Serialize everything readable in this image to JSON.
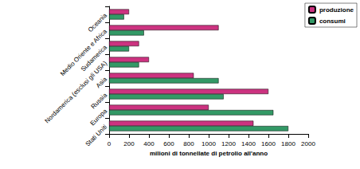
{
  "chart_data": {
    "type": "bar",
    "orientation": "horizontal",
    "x_label": "milioni di tonnellate di petrolio all'anno",
    "categories": [
      "Stati Uniti",
      "Europa",
      "Russia",
      "Asia",
      "Nordamerica (esclusi gli USA)",
      "Sudamerica",
      "Medio Oriente e Africa",
      "Oceania"
    ],
    "series": [
      {
        "name": "produzione",
        "color": "#cc3380",
        "values": [
          1450,
          1000,
          1600,
          850,
          400,
          300,
          1100,
          200
        ]
      },
      {
        "name": "consumi",
        "color": "#339966",
        "values": [
          1800,
          1650,
          1150,
          1100,
          300,
          200,
          350,
          150
        ]
      }
    ],
    "xlim": [
      0,
      2000
    ],
    "xticks": [
      0,
      200,
      400,
      600,
      800,
      1000,
      1200,
      1400,
      1600,
      1800,
      2000
    ],
    "grid": false,
    "legend": "top-right"
  }
}
